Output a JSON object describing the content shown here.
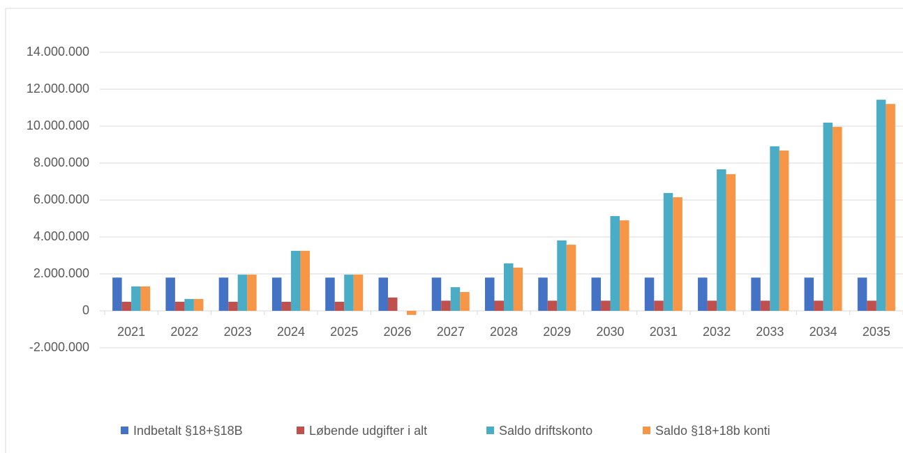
{
  "chart_data": {
    "type": "bar",
    "categories": [
      "2021",
      "2022",
      "2023",
      "2024",
      "2025",
      "2026",
      "2027",
      "2028",
      "2029",
      "2030",
      "2031",
      "2032",
      "2033",
      "2034",
      "2035"
    ],
    "series": [
      {
        "name": "Indbetalt §18+§18B",
        "color": "#4472c4",
        "values": [
          1800000,
          1800000,
          1800000,
          1800000,
          1800000,
          1800000,
          1800000,
          1800000,
          1800000,
          1800000,
          1800000,
          1800000,
          1800000,
          1800000,
          1800000
        ]
      },
      {
        "name": "Løbende udgifter i alt",
        "color": "#c0504d",
        "values": [
          490000,
          490000,
          490000,
          490000,
          490000,
          720000,
          550000,
          550000,
          550000,
          550000,
          550000,
          550000,
          550000,
          550000,
          550000
        ]
      },
      {
        "name": "Saldo driftskonto",
        "color": "#4bacc6",
        "values": [
          1320000,
          640000,
          1960000,
          3250000,
          1960000,
          0,
          1280000,
          2570000,
          3810000,
          5130000,
          6380000,
          7660000,
          8910000,
          10190000,
          11430000
        ]
      },
      {
        "name": "Saldo §18+18b konti",
        "color": "#f79646",
        "values": [
          1320000,
          640000,
          1960000,
          3250000,
          1960000,
          -220000,
          1020000,
          2340000,
          3580000,
          4900000,
          6150000,
          7400000,
          8680000,
          9960000,
          11200000
        ]
      }
    ],
    "ylim": [
      -2000000,
      14000000
    ],
    "yticks": [
      {
        "value": -2000000,
        "label": "-2.000.000"
      },
      0,
      {
        "value": 2000000,
        "label": "2.000.000"
      },
      {
        "value": 4000000,
        "label": "4.000.000"
      },
      {
        "value": 6000000,
        "label": "6.000.000"
      },
      {
        "value": 8000000,
        "label": "8.000.000"
      },
      {
        "value": 10000000,
        "label": "10.000.000"
      },
      {
        "value": 12000000,
        "label": "12.000.000"
      },
      {
        "value": 14000000,
        "label": "14.000.000"
      }
    ],
    "grid": true,
    "legend": "bottom"
  }
}
